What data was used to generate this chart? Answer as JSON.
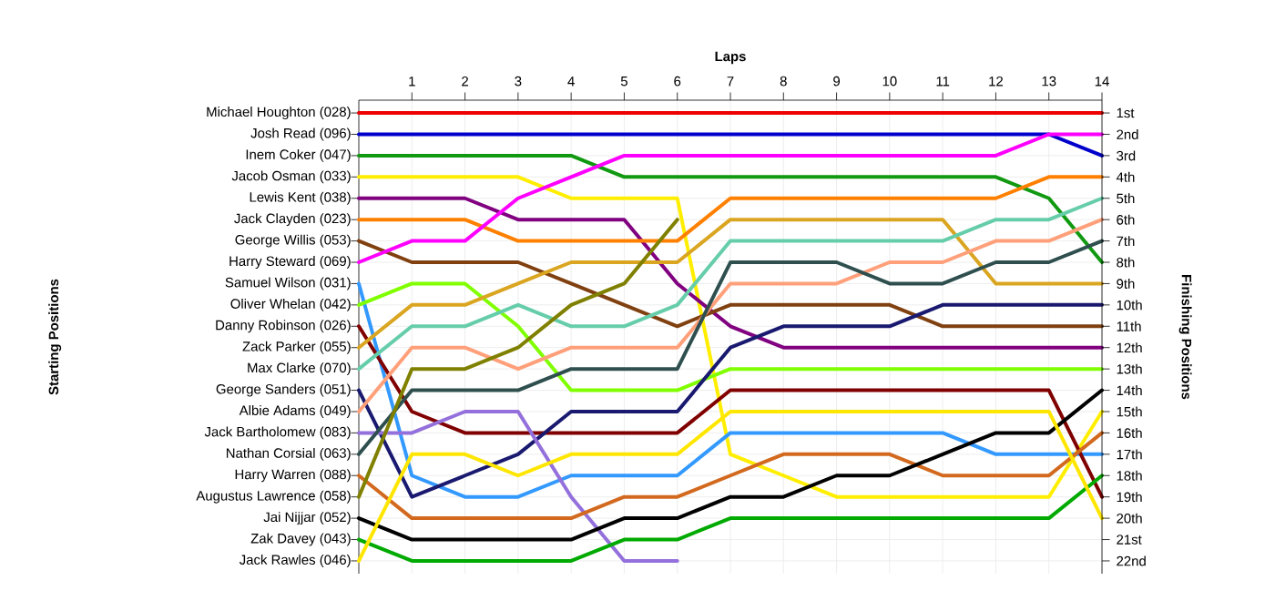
{
  "chart_data": {
    "type": "line",
    "xlabel": "Laps",
    "y2label": "Finishing Positions",
    "x": [
      0,
      1,
      2,
      3,
      4,
      5,
      6,
      7,
      8,
      9,
      10,
      11,
      12,
      13,
      14
    ],
    "xlim": [
      0,
      14
    ],
    "xticks": [
      1,
      2,
      3,
      4,
      5,
      6,
      7,
      8,
      9,
      10,
      11,
      12,
      13,
      14
    ],
    "y2lim": [
      22.6,
      0.4
    ],
    "y2ticks": [
      {
        "value": 1,
        "label": "1st"
      },
      {
        "value": 2,
        "label": "2nd"
      },
      {
        "value": 3,
        "label": "3rd"
      },
      {
        "value": 4,
        "label": "4th"
      },
      {
        "value": 5,
        "label": "5th"
      },
      {
        "value": 6,
        "label": "6th"
      },
      {
        "value": 7,
        "label": "7th"
      },
      {
        "value": 8,
        "label": "8th"
      },
      {
        "value": 9,
        "label": "9th"
      },
      {
        "value": 10,
        "label": "10th"
      },
      {
        "value": 11,
        "label": "11th"
      },
      {
        "value": 12,
        "label": "12th"
      },
      {
        "value": 13,
        "label": "13th"
      },
      {
        "value": 14,
        "label": "14th"
      },
      {
        "value": 15,
        "label": "15th"
      },
      {
        "value": 16,
        "label": "16th"
      },
      {
        "value": 17,
        "label": "17th"
      },
      {
        "value": 18,
        "label": "18th"
      },
      {
        "value": 19,
        "label": "19th"
      },
      {
        "value": 20,
        "label": "20th"
      },
      {
        "value": 21,
        "label": "21st"
      },
      {
        "value": 22,
        "label": "22nd"
      }
    ],
    "grid": true,
    "marker": "none",
    "line_style": "solid",
    "annotations": [
      "Michael Houghton (028)",
      "Josh Read (096)",
      "Inem Coker (047)",
      "Jacob Osman (033)",
      "Lewis Kent (038)",
      "Jack Clayden (023)",
      "George Willis (053)",
      "Harry Steward (069)",
      "Samuel Wilson (031)",
      "Oliver Whelan (042)",
      "Danny Robinson (026)",
      "Zack Parker (055)",
      "Max Clarke (070)",
      "George Sanders (051)",
      "Albie Adams (049)",
      "Jack Bartholomew (083)",
      "Nathan Corsial (063)",
      "Harry Warren (088)",
      "Augustus Lawrence (058)",
      "Jai Nijjar (052)",
      "Zak Davey (043)",
      "Jack Rawles (046)",
      "Starting Positions"
    ],
    "series": [
      {
        "axis": "y2",
        "color": "#ee0000",
        "values": [
          1,
          1,
          1,
          1,
          1,
          1,
          1,
          1,
          1,
          1,
          1,
          1,
          1,
          1,
          1
        ]
      },
      {
        "axis": "y2",
        "color": "#0000cc",
        "values": [
          2,
          2,
          2,
          2,
          2,
          2,
          2,
          2,
          2,
          2,
          2,
          2,
          2,
          2,
          3
        ]
      },
      {
        "axis": "y2",
        "color": "#119911",
        "values": [
          3,
          3,
          3,
          3,
          3,
          4,
          4,
          4,
          4,
          4,
          4,
          4,
          4,
          5,
          8
        ]
      },
      {
        "axis": "y2",
        "color": "#ffee00",
        "values": [
          4,
          4,
          4,
          4,
          5,
          5,
          5,
          17,
          18,
          19,
          19,
          19,
          19,
          19,
          15
        ]
      },
      {
        "axis": "y2",
        "color": "#800080",
        "values": [
          5,
          5,
          5,
          6,
          6,
          6,
          9,
          11,
          12,
          12,
          12,
          12,
          12,
          12,
          12
        ]
      },
      {
        "axis": "y2",
        "color": "#ff8000",
        "values": [
          6,
          6,
          6,
          7,
          7,
          7,
          7,
          5,
          5,
          5,
          5,
          5,
          5,
          4,
          4
        ]
      },
      {
        "axis": "y2",
        "color": "#804010",
        "values": [
          7,
          8,
          8,
          8,
          9,
          10,
          11,
          10,
          10,
          10,
          10,
          11,
          11,
          11,
          11
        ]
      },
      {
        "axis": "y2",
        "color": "#ff00ff",
        "values": [
          8,
          7,
          7,
          5,
          4,
          3,
          3,
          3,
          3,
          3,
          3,
          3,
          3,
          2,
          2
        ]
      },
      {
        "axis": "y2",
        "color": "#3399ff",
        "values": [
          9,
          18,
          19,
          19,
          18,
          18,
          18,
          16,
          16,
          16,
          16,
          16,
          17,
          17,
          17
        ]
      },
      {
        "axis": "y2",
        "color": "#80ff00",
        "values": [
          10,
          9,
          9,
          11,
          14,
          14,
          14,
          13,
          13,
          13,
          13,
          13,
          13,
          13,
          13
        ]
      },
      {
        "axis": "y2",
        "color": "#800000",
        "values": [
          11,
          15,
          16,
          16,
          16,
          16,
          16,
          14,
          14,
          14,
          14,
          14,
          14,
          14,
          19
        ]
      },
      {
        "axis": "y2",
        "color": "#daa520",
        "values": [
          12,
          10,
          10,
          9,
          8,
          8,
          8,
          6,
          6,
          6,
          6,
          6,
          9,
          9,
          9
        ]
      },
      {
        "axis": "y2",
        "color": "#66cdaa",
        "values": [
          13,
          11,
          11,
          10,
          11,
          11,
          10,
          7,
          7,
          7,
          7,
          7,
          6,
          6,
          5
        ]
      },
      {
        "axis": "y2",
        "color": "#191970",
        "values": [
          14,
          19,
          18,
          17,
          15,
          15,
          15,
          12,
          11,
          11,
          11,
          10,
          10,
          10,
          10
        ]
      },
      {
        "axis": "y2",
        "color": "#ffa07a",
        "values": [
          15,
          12,
          12,
          13,
          12,
          12,
          12,
          9,
          9,
          9,
          8,
          8,
          7,
          7,
          6
        ]
      },
      {
        "axis": "y2",
        "color": "#9370db",
        "values": [
          16,
          16,
          15,
          15,
          19,
          22,
          22,
          null,
          null,
          null,
          null,
          null,
          null,
          null,
          null
        ]
      },
      {
        "axis": "y2",
        "color": "#2f4f4f",
        "values": [
          17,
          14,
          14,
          14,
          13,
          13,
          13,
          8,
          8,
          8,
          9,
          9,
          8,
          8,
          7
        ]
      },
      {
        "axis": "y2",
        "color": "#d2691e",
        "values": [
          18,
          20,
          20,
          20,
          20,
          19,
          19,
          18,
          17,
          17,
          17,
          18,
          18,
          18,
          16
        ]
      },
      {
        "axis": "y2",
        "color": "#808000",
        "values": [
          19,
          13,
          13,
          12,
          10,
          9,
          6,
          null,
          null,
          null,
          null,
          null,
          null,
          null,
          null
        ]
      },
      {
        "axis": "y2",
        "color": "#000000",
        "values": [
          20,
          21,
          21,
          21,
          21,
          20,
          20,
          19,
          19,
          18,
          18,
          17,
          16,
          16,
          14
        ]
      },
      {
        "axis": "y2",
        "color": "#00aa00",
        "values": [
          21,
          22,
          22,
          22,
          22,
          21,
          21,
          20,
          20,
          20,
          20,
          20,
          20,
          20,
          18
        ]
      },
      {
        "axis": "y2",
        "color": "#ffe600",
        "values": [
          22,
          17,
          17,
          18,
          17,
          17,
          17,
          15,
          15,
          15,
          15,
          15,
          15,
          15,
          20
        ]
      }
    ]
  }
}
